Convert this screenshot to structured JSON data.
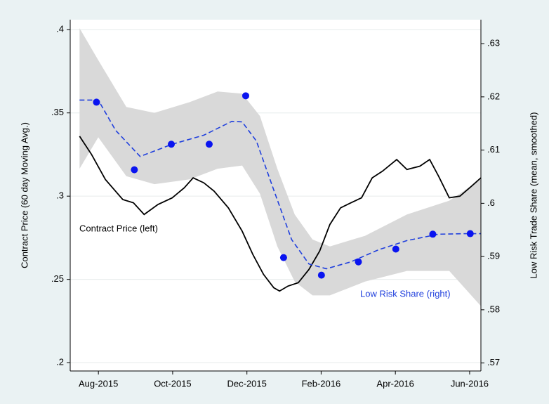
{
  "chart_data": {
    "type": "line",
    "y_label": "Contract Price (60 day Moving Avg.)",
    "y2_label": "Low Risk Trade Share (mean, smoothed)",
    "xlim": [
      2015.52,
      2016.442
    ],
    "xticks": [
      {
        "value": 2015.5833,
        "label": "Aug-2015"
      },
      {
        "value": 2015.75,
        "label": "Oct-2015"
      },
      {
        "value": 2015.9167,
        "label": "Dec-2015"
      },
      {
        "value": 2016.0833,
        "label": "Feb-2016"
      },
      {
        "value": 2016.25,
        "label": "Apr-2016"
      },
      {
        "value": 2016.4167,
        "label": "Jun-2016"
      }
    ],
    "ylim": [
      0.195,
      0.406
    ],
    "yticks": [
      {
        "value": 0.2,
        "label": ".2"
      },
      {
        "value": 0.25,
        "label": ".25"
      },
      {
        "value": 0.3,
        "label": ".3"
      },
      {
        "value": 0.35,
        "label": ".35"
      },
      {
        "value": 0.4,
        "label": ".4"
      }
    ],
    "y2lim": [
      0.5685,
      0.6345
    ],
    "y2ticks": [
      {
        "value": 0.57,
        "label": ".57"
      },
      {
        "value": 0.58,
        "label": ".58"
      },
      {
        "value": 0.59,
        "label": ".59"
      },
      {
        "value": 0.6,
        "label": ".6"
      },
      {
        "value": 0.61,
        "label": ".61"
      },
      {
        "value": 0.62,
        "label": ".62"
      },
      {
        "value": 0.63,
        "label": ".63"
      }
    ],
    "grid": true,
    "series": [
      {
        "mark": "band",
        "axis": "y2",
        "color": "#d9d9d9",
        "x": [
          2015.541,
          2015.583,
          2015.646,
          2015.709,
          2015.788,
          2015.851,
          2015.906,
          2015.946,
          2015.985,
          2016.024,
          2016.064,
          2016.103,
          2016.182,
          2016.276,
          2016.371,
          2016.442
        ],
        "upper": [
          0.6329,
          0.6269,
          0.6181,
          0.617,
          0.619,
          0.621,
          0.6206,
          0.6164,
          0.6065,
          0.5979,
          0.5932,
          0.5919,
          0.5939,
          0.5979,
          0.6005,
          0.6045
        ],
        "lower": [
          0.6065,
          0.6124,
          0.6051,
          0.6036,
          0.6045,
          0.6065,
          0.6071,
          0.6018,
          0.5919,
          0.5853,
          0.5827,
          0.5827,
          0.5853,
          0.5873,
          0.5873,
          0.5807
        ]
      },
      {
        "mark": "line",
        "axis": "y",
        "color": "#000000",
        "dashed": false,
        "x": [
          2015.541,
          2015.568,
          2015.599,
          2015.638,
          2015.662,
          2015.686,
          2015.717,
          2015.749,
          2015.776,
          2015.796,
          2015.82,
          2015.843,
          2015.875,
          2015.906,
          2015.93,
          2015.954,
          2015.977,
          2015.99,
          2016.009,
          2016.032,
          2016.056,
          2016.08,
          2016.103,
          2016.127,
          2016.15,
          2016.174,
          2016.198,
          2016.221,
          2016.253,
          2016.276,
          2016.305,
          2016.327,
          2016.347,
          2016.371,
          2016.395,
          2016.421,
          2016.442
        ],
        "values": [
          0.336,
          0.325,
          0.31,
          0.298,
          0.296,
          0.289,
          0.295,
          0.299,
          0.305,
          0.311,
          0.308,
          0.303,
          0.293,
          0.279,
          0.265,
          0.253,
          0.245,
          0.243,
          0.246,
          0.248,
          0.256,
          0.267,
          0.283,
          0.293,
          0.296,
          0.299,
          0.311,
          0.315,
          0.322,
          0.316,
          0.318,
          0.322,
          0.312,
          0.299,
          0.3,
          0.306,
          0.311
        ]
      },
      {
        "mark": "line",
        "axis": "y2",
        "color": "#1f3fdd",
        "dashed": true,
        "x": [
          2015.541,
          2015.583,
          2015.622,
          2015.677,
          2015.749,
          2015.82,
          2015.883,
          2015.906,
          2015.938,
          2015.977,
          2016.017,
          2016.056,
          2016.095,
          2016.15,
          2016.213,
          2016.276,
          2016.347,
          2016.41,
          2016.442
        ],
        "values": [
          0.6194,
          0.6194,
          0.6137,
          0.6088,
          0.6111,
          0.6128,
          0.6154,
          0.6153,
          0.6117,
          0.6025,
          0.5932,
          0.5886,
          0.5877,
          0.589,
          0.5913,
          0.593,
          0.5942,
          0.5943,
          0.5943
        ]
      },
      {
        "mark": "dots",
        "axis": "y2",
        "color": "#0a14f0",
        "x": [
          2015.579,
          2015.664,
          2015.747,
          2015.832,
          2015.914,
          2015.999,
          2016.084,
          2016.167,
          2016.251,
          2016.334,
          2016.418
        ],
        "values": [
          0.619,
          0.6063,
          0.6111,
          0.6111,
          0.6202,
          0.5898,
          0.5865,
          0.589,
          0.5914,
          0.5942,
          0.5943
        ]
      }
    ],
    "annotations": [
      {
        "text": "Contract Price (left)",
        "color": "#000000"
      },
      {
        "text": "Low Risk Share (right)",
        "color": "#1f3fdd"
      }
    ]
  }
}
